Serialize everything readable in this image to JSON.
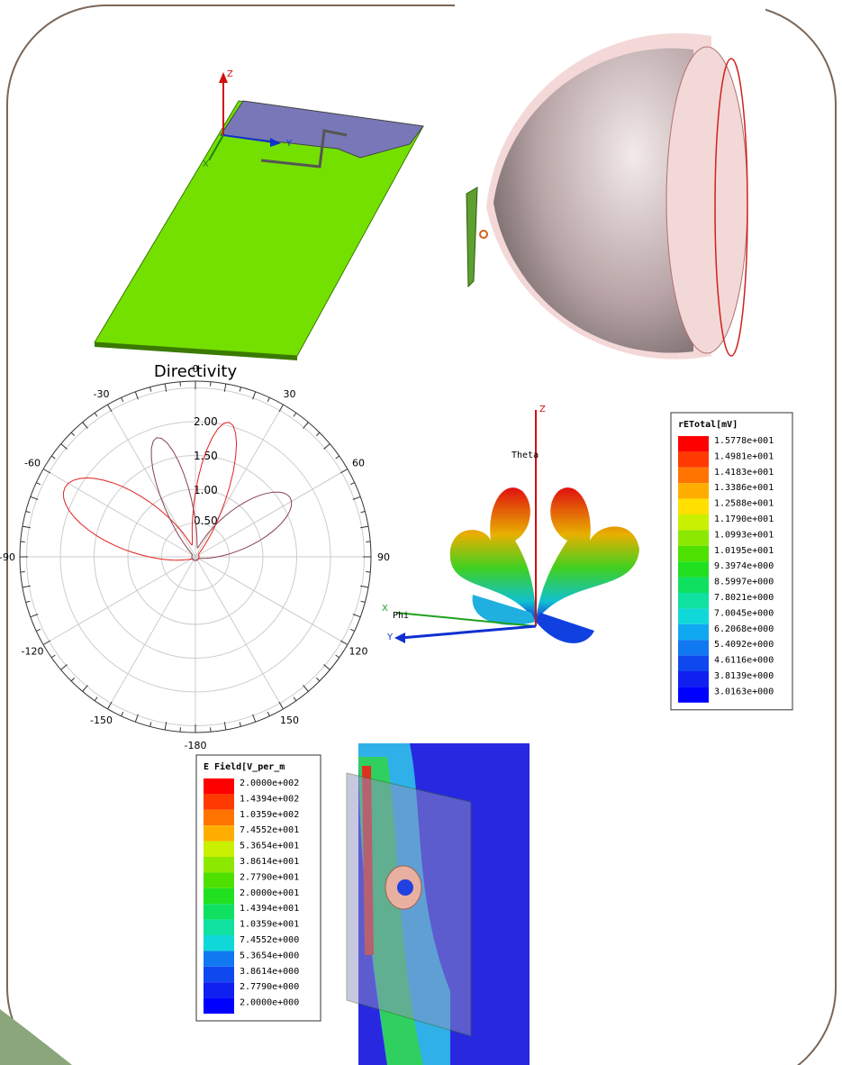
{
  "antenna_view": {
    "axis_z": "Z",
    "axis_y": "Y",
    "axis_x": "X"
  },
  "polar_plot": {
    "title": "Directivity",
    "angle_labels": [
      "0",
      "30",
      "60",
      "90",
      "120",
      "150",
      "-180",
      "-150",
      "-120",
      "-90",
      "-60",
      "-30"
    ],
    "radial_labels": [
      "2.00",
      "1.50",
      "1.00",
      "0.50"
    ]
  },
  "pattern_3d": {
    "axis_z": "Z",
    "theta": "Theta",
    "axis_x": "X",
    "phi": "Phi",
    "axis_y": "Y"
  },
  "legend_etotal": {
    "title": "rETotal[mV]",
    "values": [
      "1.5778e+001",
      "1.4981e+001",
      "1.4183e+001",
      "1.3386e+001",
      "1.2588e+001",
      "1.1790e+001",
      "1.0993e+001",
      "1.0195e+001",
      "9.3974e+000",
      "8.5997e+000",
      "7.8021e+000",
      "7.0045e+000",
      "6.2068e+000",
      "5.4092e+000",
      "4.6116e+000",
      "3.8139e+000",
      "3.0163e+000"
    ]
  },
  "legend_efield": {
    "title": "E Field[V_per_m",
    "values": [
      "2.0000e+002",
      "1.4394e+002",
      "1.0359e+002",
      "7.4552e+001",
      "5.3654e+001",
      "3.8614e+001",
      "2.7790e+001",
      "2.0000e+001",
      "1.4394e+001",
      "1.0359e+001",
      "7.4552e+000",
      "5.3654e+000",
      "3.8614e+000",
      "2.7790e+000",
      "2.0000e+000"
    ]
  }
}
